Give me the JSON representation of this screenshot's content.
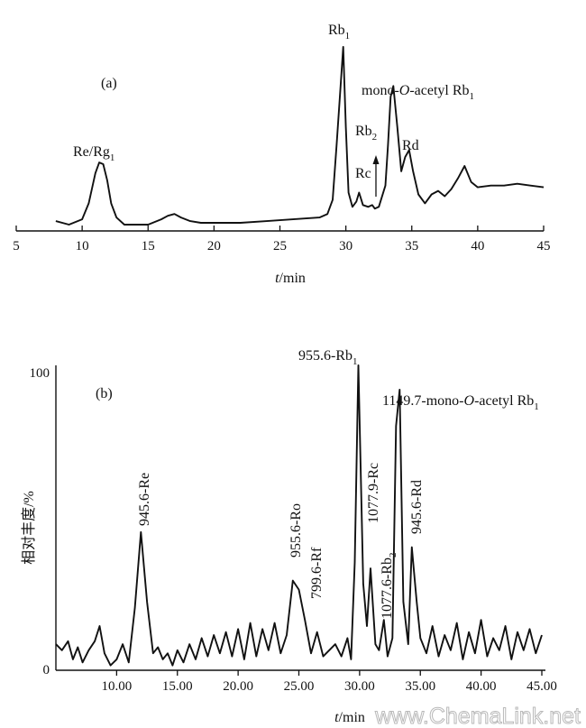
{
  "chart_data": [
    {
      "panel": "(a)",
      "type": "line",
      "xlabel_italic": "t",
      "xlabel_rest": "/min",
      "xlim": [
        5,
        45
      ],
      "xticks": [
        5,
        10,
        15,
        20,
        25,
        30,
        35,
        40,
        45
      ],
      "y_relative_lim": [
        0,
        100
      ],
      "series": [
        {
          "x": [
            8,
            9,
            10,
            10.5,
            11,
            11.3,
            11.6,
            11.9,
            12.2,
            12.6,
            13.2,
            14,
            15,
            16,
            16.5,
            17,
            17.5,
            18.2,
            19,
            20,
            22,
            24,
            26,
            28,
            28.6,
            29,
            29.3,
            29.6,
            29.8,
            30,
            30.2,
            30.5,
            30.8,
            31,
            31.3,
            31.7,
            32,
            32.2,
            32.5,
            33,
            33.2,
            33.4,
            33.6,
            33.9,
            34.2,
            34.5,
            34.8,
            35.1,
            35.5,
            36,
            36.5,
            37,
            37.5,
            38,
            38.5,
            39,
            39.5,
            40,
            41,
            42,
            43,
            44,
            45
          ],
          "y": [
            2,
            0,
            3,
            12,
            29,
            35,
            34,
            25,
            12,
            4,
            0,
            0,
            0,
            3,
            5,
            6,
            4,
            2,
            1,
            1,
            1,
            2,
            3,
            4,
            6,
            14,
            45,
            78,
            100,
            55,
            18,
            10,
            13,
            18,
            11,
            10,
            11,
            9,
            10,
            22,
            45,
            72,
            78,
            55,
            30,
            38,
            42,
            30,
            17,
            12,
            17,
            19,
            16,
            20,
            26,
            33,
            24,
            21,
            22,
            22,
            23,
            22,
            21
          ]
        }
      ],
      "annotations": [
        {
          "base": "Re/Rg",
          "sub": "1",
          "pre": "",
          "italic": "",
          "mid": ""
        },
        {
          "base": "Rb",
          "sub": "1",
          "pre": "",
          "italic": "",
          "mid": ""
        },
        {
          "pre": "mono-",
          "italic": "O",
          "mid": "-acetyl Rb",
          "sub": "1",
          "base": ""
        },
        {
          "base": "Rb",
          "sub": "2",
          "pre": "",
          "italic": "",
          "mid": ""
        },
        {
          "base": "Rc",
          "sub": "",
          "pre": "",
          "italic": "",
          "mid": ""
        },
        {
          "base": "Rd",
          "sub": "",
          "pre": "",
          "italic": "",
          "mid": ""
        }
      ]
    },
    {
      "panel": "(b)",
      "type": "line",
      "xlabel_italic": "t",
      "xlabel_rest": "/min",
      "ylabel": "相对丰度/%",
      "xlim": [
        5,
        45
      ],
      "ylim": [
        0,
        100
      ],
      "xtick_values": [
        10,
        15,
        20,
        25,
        30,
        35,
        40,
        45
      ],
      "xtick_labels": [
        "10.00",
        "15.00",
        "20.00",
        "25.00",
        "30.00",
        "35.00",
        "40.00",
        "45.00"
      ],
      "yticks": [
        "0",
        "100"
      ],
      "series": [
        {
          "x": [
            5,
            5.5,
            6,
            6.4,
            6.8,
            7.2,
            7.7,
            8.2,
            8.6,
            9,
            9.5,
            10,
            10.5,
            11,
            11.5,
            12,
            12.5,
            13,
            13.4,
            13.8,
            14.2,
            14.6,
            15,
            15.5,
            16,
            16.5,
            17,
            17.5,
            18,
            18.5,
            19,
            19.5,
            20,
            20.5,
            21,
            21.5,
            22,
            22.5,
            23,
            23.5,
            24,
            24.5,
            25,
            25.5,
            26,
            26.5,
            27,
            27.5,
            28,
            28.5,
            29,
            29.3,
            29.6,
            29.9,
            30.3,
            30.6,
            30.9,
            31.3,
            31.6,
            32,
            32.3,
            32.7,
            33,
            33.3,
            33.6,
            34,
            34.3,
            34.7,
            35,
            35.5,
            36,
            36.5,
            37,
            37.5,
            38,
            38.5,
            39,
            39.5,
            40,
            40.5,
            41,
            41.5,
            42,
            42.5,
            43,
            43.5,
            44,
            44.5,
            45
          ],
          "y": [
            8,
            6,
            9,
            3,
            7,
            2,
            6,
            9,
            14,
            5,
            1,
            3,
            8,
            2,
            20,
            45,
            22,
            5,
            7,
            3,
            5,
            1,
            6,
            2,
            8,
            3,
            10,
            4,
            11,
            5,
            12,
            4,
            13,
            3,
            15,
            4,
            13,
            6,
            15,
            5,
            11,
            29,
            26,
            16,
            5,
            12,
            4,
            6,
            8,
            4,
            10,
            3,
            35,
            100,
            28,
            14,
            33,
            8,
            6,
            16,
            4,
            10,
            80,
            92,
            22,
            8,
            40,
            22,
            10,
            5,
            14,
            4,
            11,
            6,
            15,
            3,
            12,
            5,
            16,
            4,
            10,
            6,
            14,
            3,
            12,
            6,
            13,
            5,
            11
          ]
        }
      ],
      "annotations": [
        {
          "text": "945.6-Re",
          "orientation": "vertical"
        },
        {
          "base": "955.6-Rb",
          "sub": "1",
          "orientation": "horizontal"
        },
        {
          "pre": "1149.7-mono-",
          "italic": "O",
          "mid": "-acetyl Rb",
          "sub": "1",
          "orientation": "horizontal"
        },
        {
          "text": "955.6-Ro",
          "orientation": "vertical"
        },
        {
          "text": "799.6-Rf",
          "orientation": "vertical"
        },
        {
          "text": "1077.9-Rc",
          "orientation": "vertical"
        },
        {
          "base": "1077.6-Rb",
          "sub": "2",
          "orientation": "vertical"
        },
        {
          "text": "945.6-Rd",
          "orientation": "vertical"
        }
      ]
    }
  ],
  "watermark": "www.ChemaLink.net"
}
